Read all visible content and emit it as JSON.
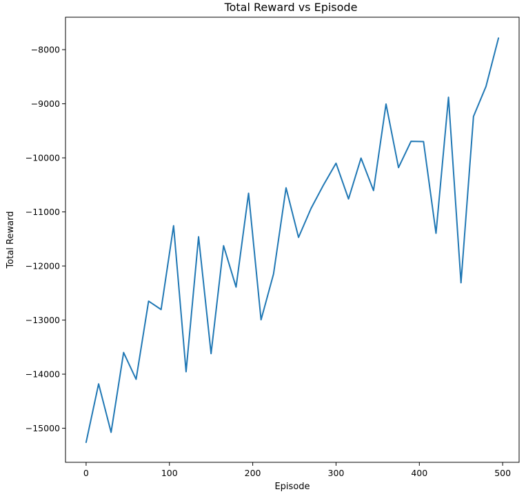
{
  "chart_data": {
    "type": "line",
    "title": "Total Reward vs Episode",
    "xlabel": "Episode",
    "ylabel": "Total Reward",
    "xlim": [
      -24.75,
      519.75
    ],
    "ylim": [
      -15630,
      -7400
    ],
    "x_ticks": [
      0,
      100,
      200,
      300,
      400,
      500
    ],
    "y_ticks": [
      -15000,
      -14000,
      -13000,
      -12000,
      -11000,
      -10000,
      -9000,
      -8000
    ],
    "x_tick_labels": [
      "0",
      "100",
      "200",
      "300",
      "400",
      "500"
    ],
    "y_tick_labels": [
      "−15000",
      "−14000",
      "−13000",
      "−12000",
      "−11000",
      "−10000",
      "−9000",
      "−8000"
    ],
    "grid": false,
    "line_color": "#1f77b4",
    "series": [
      {
        "x": [
          0,
          15,
          30,
          45,
          60,
          75,
          90,
          105,
          120,
          135,
          150,
          165,
          180,
          195,
          210,
          225,
          240,
          255,
          270,
          285,
          300,
          315,
          330,
          345,
          360,
          375,
          390,
          405,
          420,
          435,
          450,
          465,
          480,
          495
        ],
        "values": [
          -15260,
          -14180,
          -15075,
          -13600,
          -14095,
          -12650,
          -12805,
          -11255,
          -13955,
          -11460,
          -13620,
          -11625,
          -12390,
          -10655,
          -12995,
          -12145,
          -10555,
          -11470,
          -10935,
          -10500,
          -10100,
          -10760,
          -10005,
          -10605,
          -9005,
          -10180,
          -9695,
          -9700,
          -11395,
          -8880,
          -12310,
          -9235,
          -8680,
          -7785
        ]
      }
    ]
  }
}
